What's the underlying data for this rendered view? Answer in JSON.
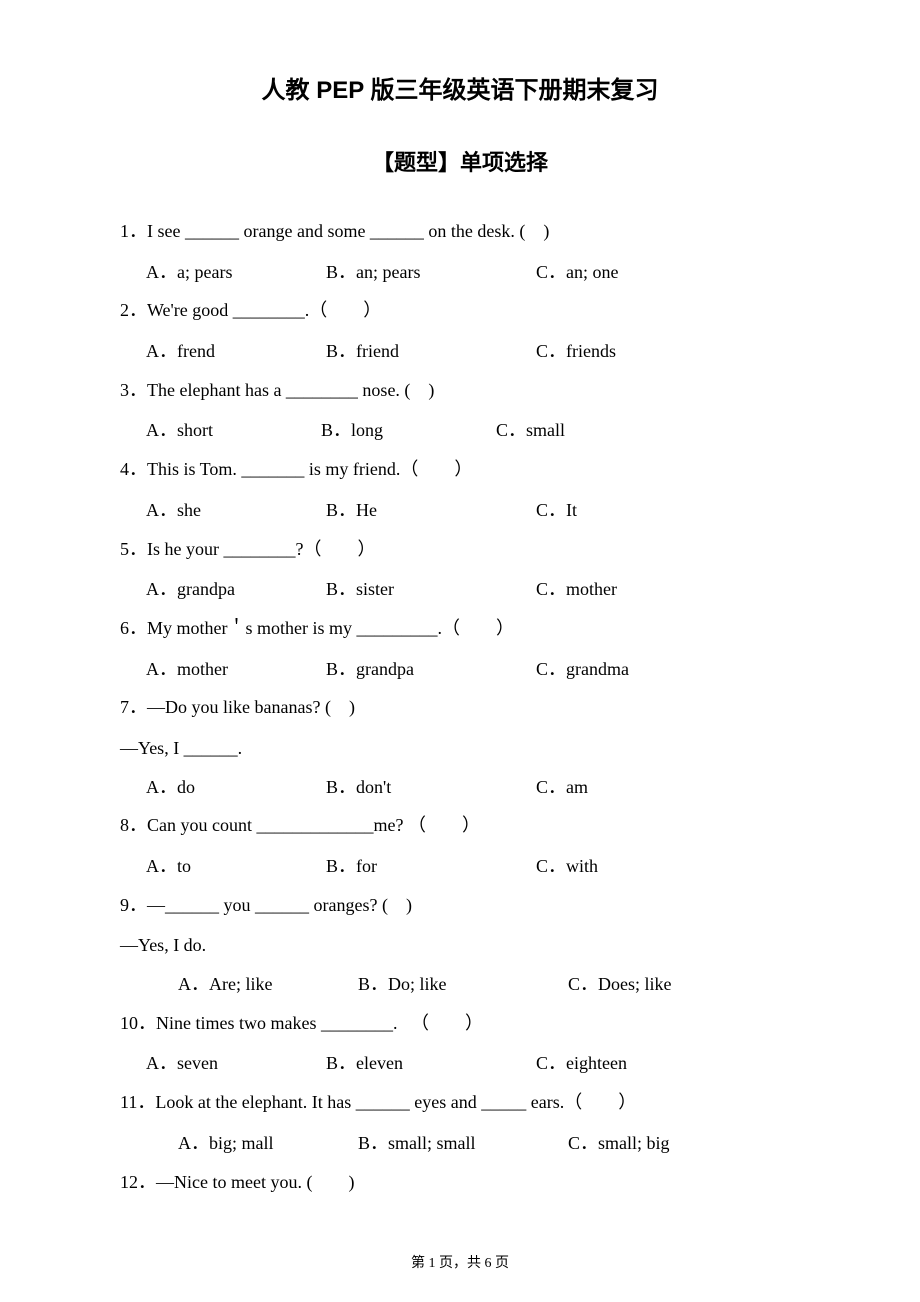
{
  "title": "人教 PEP 版三年级英语下册期末复习",
  "subtitle": "【题型】单项选择",
  "questions": [
    {
      "num": "1．",
      "text": "I see ______ orange and some ______ on the desk. (　)",
      "optA": "A．a; pears",
      "optB": "B．an; pears",
      "optC": "C．an; one",
      "indented": false
    },
    {
      "num": "2．",
      "text": "We're good ________.（　　）",
      "optA": "A．frend",
      "optB": "B．friend",
      "optC": "C．friends",
      "indented": false
    },
    {
      "num": "3．",
      "text": "The elephant has a ________ nose. (　)",
      "optA": "A．short",
      "optB": "B．long",
      "optC": "C．small",
      "indented": false,
      "narrow": true
    },
    {
      "num": "4．",
      "text": "This is Tom. _______ is my friend.（　　）",
      "optA": "A．she",
      "optB": "B．He",
      "optC": "C．It",
      "indented": false
    },
    {
      "num": "5．",
      "text": "Is he your ________?（　　）",
      "optA": "A．grandpa",
      "optB": "B．sister",
      "optC": "C．mother",
      "indented": false
    },
    {
      "num": "6．",
      "text": "My mother＇s mother is my _________.（　　）",
      "optA": "A．mother",
      "optB": "B．grandpa",
      "optC": "C．grandma",
      "indented": false
    },
    {
      "num": "7．",
      "text": "—Do you like bananas? (　)",
      "continuation": "—Yes, I ______.",
      "optA": "A．do",
      "optB": "B．don't",
      "optC": "C．am",
      "indented": false
    },
    {
      "num": "8．",
      "text": "Can you count _____________me?  （　　）",
      "optA": "A．to",
      "optB": "B．for",
      "optC": "C．with",
      "indented": false
    },
    {
      "num": "9．",
      "text": "—______ you ______ oranges? (　)",
      "continuation": "—Yes, I do.",
      "optA": "A．Are; like",
      "optB": "B．Do; like",
      "optC": "C．Does; like",
      "indented": true
    },
    {
      "num": "10．",
      "text": "Nine times two makes ________. 　（　　）",
      "optA": "A．seven",
      "optB": "B．eleven",
      "optC": "C．eighteen",
      "indented": false
    },
    {
      "num": "11．",
      "text": "Look at the elephant. It has ______ eyes and _____ ears.（　　）",
      "optA": "A．big; mall",
      "optB": "B．small; small",
      "optC": "C．small; big",
      "indented": true
    },
    {
      "num": "12．",
      "text": "—Nice to meet you. (　　)"
    }
  ],
  "footer": "第 1 页，共 6 页"
}
